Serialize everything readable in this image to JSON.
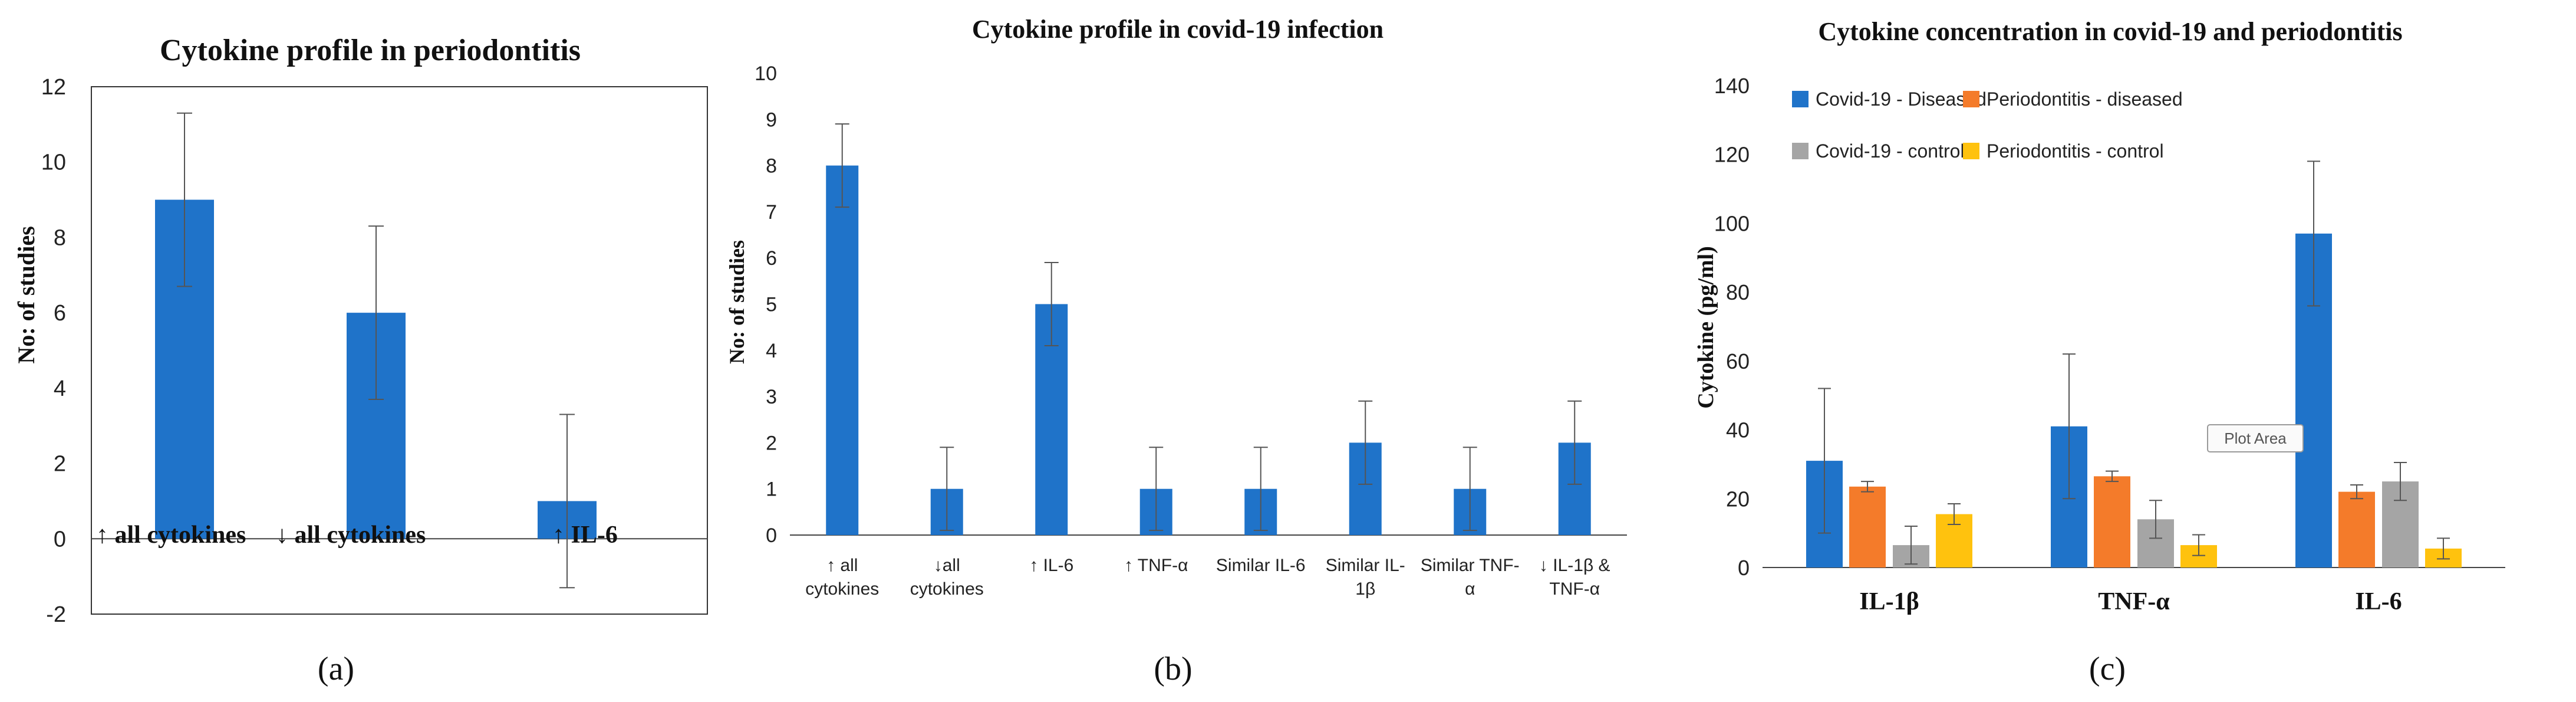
{
  "colors": {
    "blue": "#1F73C9",
    "orange": "#F47B2A",
    "gray": "#A5A5A5",
    "yellow": "#FFC20E",
    "axis": "#444444",
    "error": "#555555",
    "frame": "#333333"
  },
  "chart_data": [
    {
      "panel": "(a)",
      "type": "bar",
      "title": "Cytokine profile in periodontitis",
      "xlabel": "",
      "ylabel": "No: of studies",
      "ylim": [
        -2,
        12
      ],
      "yticks": [
        -2,
        0,
        2,
        4,
        6,
        8,
        10,
        12
      ],
      "categories": [
        "↑ all cytokines",
        "↓ all cytokines",
        "↑ IL-6"
      ],
      "values": [
        9,
        6,
        1
      ],
      "errors": [
        2.3,
        2.3,
        2.3
      ],
      "color_key": "blue"
    },
    {
      "panel": "(b)",
      "type": "bar",
      "title": "Cytokine profile in covid-19 infection",
      "xlabel": "",
      "ylabel": "No: of studies",
      "ylim": [
        0,
        10
      ],
      "yticks": [
        0,
        1,
        2,
        3,
        4,
        5,
        6,
        7,
        8,
        9,
        10
      ],
      "categories": [
        [
          "↑ all",
          "cytokines"
        ],
        [
          "↓all",
          "cytokines"
        ],
        [
          "↑ IL-6"
        ],
        [
          "↑ TNF-α"
        ],
        [
          "Similar IL-6"
        ],
        [
          "Similar IL-",
          "1β"
        ],
        [
          "Similar TNF-",
          "α"
        ],
        [
          "↓ IL-1β &",
          "TNF-α"
        ]
      ],
      "values": [
        8,
        1,
        5,
        1,
        1,
        2,
        1,
        2
      ],
      "errors": [
        0.9,
        0.9,
        0.9,
        0.9,
        0.9,
        0.9,
        0.9,
        0.9
      ],
      "color_key": "blue"
    },
    {
      "panel": "(c)",
      "type": "bar",
      "title": "Cytokine concentration in covid-19 and periodontitis",
      "xlabel": "",
      "ylabel": "Cytokine (pg/ml)",
      "ylim": [
        0,
        140
      ],
      "yticks": [
        0,
        20,
        40,
        60,
        80,
        100,
        120,
        140
      ],
      "categories": [
        "IL-1β",
        "TNF-α",
        "IL-6"
      ],
      "legend_position": "top-left",
      "series": [
        {
          "name": "Covid-19 - Diseased",
          "values": [
            31,
            41,
            97
          ],
          "errors": [
            21,
            21,
            21
          ],
          "color_key": "blue"
        },
        {
          "name": "Periodontitis - diseased",
          "values": [
            23.5,
            26.5,
            22
          ],
          "errors": [
            1.5,
            1.5,
            2
          ],
          "color_key": "orange"
        },
        {
          "name": "Covid-19 - control",
          "values": [
            6.5,
            14,
            25
          ],
          "errors": [
            5.5,
            5.5,
            5.5
          ],
          "color_key": "gray"
        },
        {
          "name": "Periodontitis - control",
          "values": [
            15.5,
            6.5,
            5.5
          ],
          "errors": [
            3,
            3,
            3
          ],
          "color_key": "yellow"
        }
      ],
      "annotation": "Plot Area"
    }
  ]
}
